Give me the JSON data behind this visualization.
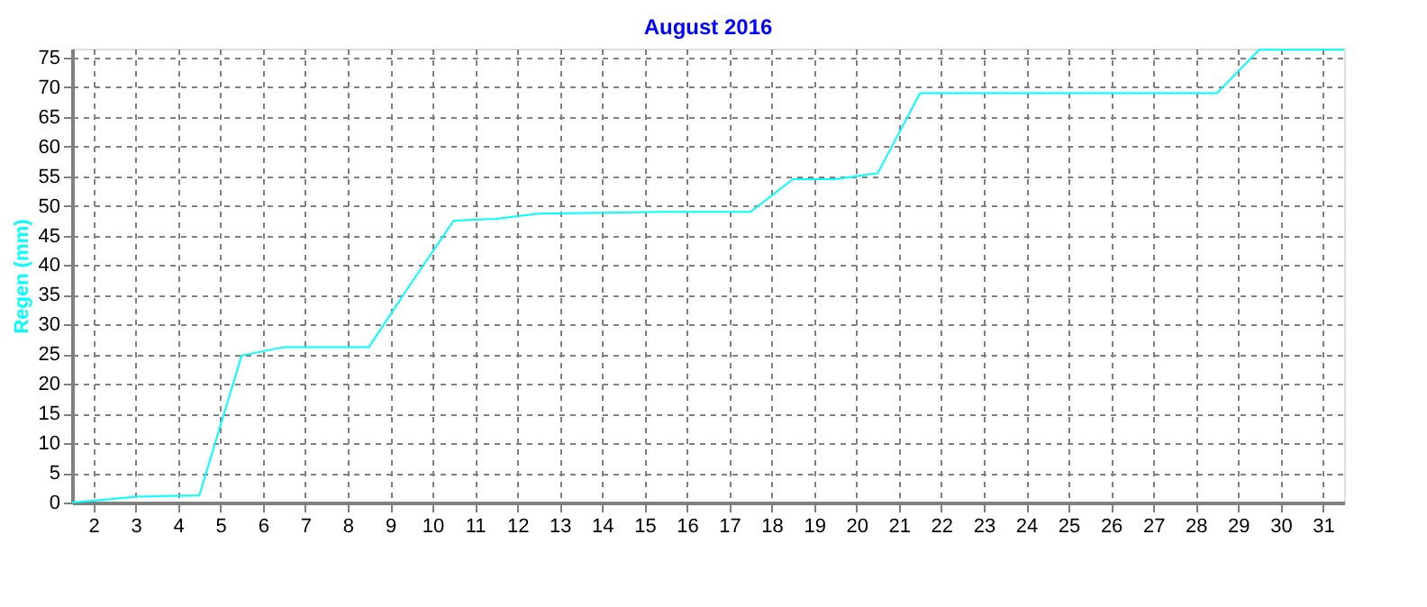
{
  "chart_data": {
    "type": "line",
    "title": "August 2016",
    "ylabel": "Regen  (mm)",
    "x": [
      1.5,
      2.3,
      3.0,
      4.5,
      5.5,
      6.5,
      8.5,
      9.5,
      10.5,
      11.5,
      12.5,
      15.5,
      17.5,
      18.5,
      19.5,
      20.5,
      21.5,
      28.5,
      29.5,
      31.5
    ],
    "series": [
      {
        "color": "#00ffff",
        "values": [
          0,
          0.5,
          1,
          1.2,
          24.8,
          26.2,
          26.2,
          37,
          47.5,
          47.8,
          48.7,
          49.0,
          49.0,
          54.5,
          54.5,
          55.5,
          69.0,
          69.0,
          76.3,
          76.3
        ]
      }
    ],
    "xlim": [
      1.5,
      31.5
    ],
    "xticks": [
      2,
      3,
      4,
      5,
      6,
      7,
      8,
      9,
      10,
      11,
      12,
      13,
      14,
      15,
      16,
      17,
      18,
      19,
      20,
      21,
      22,
      23,
      24,
      25,
      26,
      27,
      28,
      29,
      30,
      31
    ],
    "ylim": [
      0,
      76.5
    ],
    "yticks": [
      0,
      5,
      10,
      15,
      20,
      25,
      30,
      35,
      40,
      45,
      50,
      55,
      60,
      65,
      70,
      75
    ],
    "grid": true,
    "marker": "none",
    "line_style": "solid"
  }
}
